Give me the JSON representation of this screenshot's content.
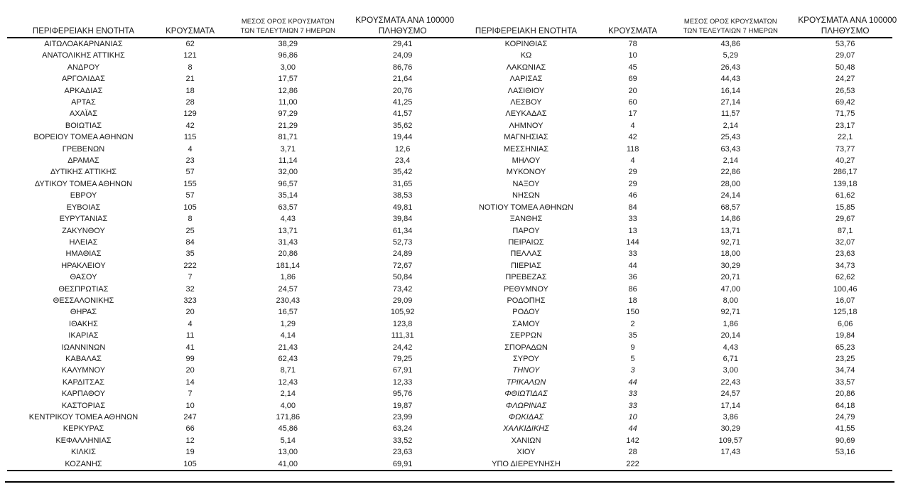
{
  "page": {
    "background_color": "#ffffff",
    "text_color": "#171717",
    "rule_color": "#000000"
  },
  "headers": {
    "region": "ΠΕΡΙΦΕΡΕΙΑΚΗ ΕΝΟΤΗΤΑ",
    "cases": "ΚΡΟΥΣΜΑΤΑ",
    "avg7_line1": "ΜΕΣΟΣ ΟΡΟΣ ΚΡΟΥΣΜΑΤΩΝ",
    "avg7_line2": "ΤΩΝ ΤΕΛΕΥΤΑΙΩΝ 7 ΗΜΕΡΩΝ",
    "per100k_line1": "ΚΡΟΥΣΜΑΤΑ ΑΝΑ 100000",
    "per100k_line2": "ΠΛΗΘΥΣΜΟ"
  },
  "tables": [
    {
      "id": "left",
      "rows": [
        {
          "region": "ΑΙΤΩΛΟΑΚΑΡΝΑΝΙΑΣ",
          "cases": "62",
          "avg7": "38,29",
          "per100k": "29,41",
          "italic": false
        },
        {
          "region": "ΑΝΑΤΟΛΙΚΗΣ ΑΤΤΙΚΗΣ",
          "cases": "121",
          "avg7": "96,86",
          "per100k": "24,09",
          "italic": false
        },
        {
          "region": "ΑΝΔΡΟΥ",
          "cases": "8",
          "avg7": "3,00",
          "per100k": "86,76",
          "italic": false
        },
        {
          "region": "ΑΡΓΟΛΙΔΑΣ",
          "cases": "21",
          "avg7": "17,57",
          "per100k": "21,64",
          "italic": false
        },
        {
          "region": "ΑΡΚΑΔΙΑΣ",
          "cases": "18",
          "avg7": "12,86",
          "per100k": "20,76",
          "italic": false
        },
        {
          "region": "ΑΡΤΑΣ",
          "cases": "28",
          "avg7": "11,00",
          "per100k": "41,25",
          "italic": false
        },
        {
          "region": "ΑΧΑΪΑΣ",
          "cases": "129",
          "avg7": "97,29",
          "per100k": "41,57",
          "italic": false
        },
        {
          "region": "ΒΟΙΩΤΙΑΣ",
          "cases": "42",
          "avg7": "21,29",
          "per100k": "35,62",
          "italic": false
        },
        {
          "region": "ΒΟΡΕΙΟΥ ΤΟΜΕΑ ΑΘΗΝΩΝ",
          "cases": "115",
          "avg7": "81,71",
          "per100k": "19,44",
          "italic": false
        },
        {
          "region": "ΓΡΕΒΕΝΩΝ",
          "cases": "4",
          "avg7": "3,71",
          "per100k": "12,6",
          "italic": false
        },
        {
          "region": "ΔΡΑΜΑΣ",
          "cases": "23",
          "avg7": "11,14",
          "per100k": "23,4",
          "italic": false
        },
        {
          "region": "ΔΥΤΙΚΗΣ ΑΤΤΙΚΗΣ",
          "cases": "57",
          "avg7": "32,00",
          "per100k": "35,42",
          "italic": false
        },
        {
          "region": "ΔΥΤΙΚΟΥ ΤΟΜΕΑ ΑΘΗΝΩΝ",
          "cases": "155",
          "avg7": "96,57",
          "per100k": "31,65",
          "italic": false
        },
        {
          "region": "ΕΒΡΟΥ",
          "cases": "57",
          "avg7": "35,14",
          "per100k": "38,53",
          "italic": false
        },
        {
          "region": "ΕΥΒΟΙΑΣ",
          "cases": "105",
          "avg7": "63,57",
          "per100k": "49,81",
          "italic": false
        },
        {
          "region": "ΕΥΡΥΤΑΝΙΑΣ",
          "cases": "8",
          "avg7": "4,43",
          "per100k": "39,84",
          "italic": false
        },
        {
          "region": "ΖΑΚΥΝΘΟΥ",
          "cases": "25",
          "avg7": "13,71",
          "per100k": "61,34",
          "italic": false
        },
        {
          "region": "ΗΛΕΙΑΣ",
          "cases": "84",
          "avg7": "31,43",
          "per100k": "52,73",
          "italic": false
        },
        {
          "region": "ΗΜΑΘΙΑΣ",
          "cases": "35",
          "avg7": "20,86",
          "per100k": "24,89",
          "italic": false
        },
        {
          "region": "ΗΡΑΚΛΕΙΟΥ",
          "cases": "222",
          "avg7": "181,14",
          "per100k": "72,67",
          "italic": false
        },
        {
          "region": "ΘΑΣΟΥ",
          "cases": "7",
          "avg7": "1,86",
          "per100k": "50,84",
          "italic": false
        },
        {
          "region": "ΘΕΣΠΡΩΤΙΑΣ",
          "cases": "32",
          "avg7": "24,57",
          "per100k": "73,42",
          "italic": false
        },
        {
          "region": "ΘΕΣΣΑΛΟΝΙΚΗΣ",
          "cases": "323",
          "avg7": "230,43",
          "per100k": "29,09",
          "italic": false
        },
        {
          "region": "ΘΗΡΑΣ",
          "cases": "20",
          "avg7": "16,57",
          "per100k": "105,92",
          "italic": false
        },
        {
          "region": "ΙΘΑΚΗΣ",
          "cases": "4",
          "avg7": "1,29",
          "per100k": "123,8",
          "italic": false
        },
        {
          "region": "ΙΚΑΡΙΑΣ",
          "cases": "11",
          "avg7": "4,14",
          "per100k": "111,31",
          "italic": false
        },
        {
          "region": "ΙΩΑΝΝΙΝΩΝ",
          "cases": "41",
          "avg7": "21,43",
          "per100k": "24,42",
          "italic": false
        },
        {
          "region": "ΚΑΒΑΛΑΣ",
          "cases": "99",
          "avg7": "62,43",
          "per100k": "79,25",
          "italic": false
        },
        {
          "region": "ΚΑΛΥΜΝΟΥ",
          "cases": "20",
          "avg7": "8,71",
          "per100k": "67,91",
          "italic": false
        },
        {
          "region": "ΚΑΡΔΙΤΣΑΣ",
          "cases": "14",
          "avg7": "12,43",
          "per100k": "12,33",
          "italic": false
        },
        {
          "region": "ΚΑΡΠΑΘΟΥ",
          "cases": "7",
          "avg7": "2,14",
          "per100k": "95,76",
          "italic": false
        },
        {
          "region": "ΚΑΣΤΟΡΙΑΣ",
          "cases": "10",
          "avg7": "4,00",
          "per100k": "19,87",
          "italic": false
        },
        {
          "region": "ΚΕΝΤΡΙΚΟΥ ΤΟΜΕΑ ΑΘΗΝΩΝ",
          "cases": "247",
          "avg7": "171,86",
          "per100k": "23,99",
          "italic": false
        },
        {
          "region": "ΚΕΡΚΥΡΑΣ",
          "cases": "66",
          "avg7": "45,86",
          "per100k": "63,24",
          "italic": false
        },
        {
          "region": "ΚΕΦΑΛΛΗΝΙΑΣ",
          "cases": "12",
          "avg7": "5,14",
          "per100k": "33,52",
          "italic": false
        },
        {
          "region": "ΚΙΛΚΙΣ",
          "cases": "19",
          "avg7": "13,00",
          "per100k": "23,63",
          "italic": false
        },
        {
          "region": "ΚΟΖΑΝΗΣ",
          "cases": "105",
          "avg7": "41,00",
          "per100k": "69,91",
          "italic": false
        }
      ]
    },
    {
      "id": "right",
      "rows": [
        {
          "region": "ΚΟΡΙΝΘΙΑΣ",
          "cases": "78",
          "avg7": "43,86",
          "per100k": "53,76",
          "italic": false
        },
        {
          "region": "ΚΩ",
          "cases": "10",
          "avg7": "5,29",
          "per100k": "29,07",
          "italic": false
        },
        {
          "region": "ΛΑΚΩΝΙΑΣ",
          "cases": "45",
          "avg7": "26,43",
          "per100k": "50,48",
          "italic": false
        },
        {
          "region": "ΛΑΡΙΣΑΣ",
          "cases": "69",
          "avg7": "44,43",
          "per100k": "24,27",
          "italic": false
        },
        {
          "region": "ΛΑΣΙΘΙΟΥ",
          "cases": "20",
          "avg7": "16,14",
          "per100k": "26,53",
          "italic": false
        },
        {
          "region": "ΛΕΣΒΟΥ",
          "cases": "60",
          "avg7": "27,14",
          "per100k": "69,42",
          "italic": false
        },
        {
          "region": "ΛΕΥΚΑΔΑΣ",
          "cases": "17",
          "avg7": "11,57",
          "per100k": "71,75",
          "italic": false
        },
        {
          "region": "ΛΗΜΝΟΥ",
          "cases": "4",
          "avg7": "2,14",
          "per100k": "23,17",
          "italic": false
        },
        {
          "region": "ΜΑΓΝΗΣΙΑΣ",
          "cases": "42",
          "avg7": "25,43",
          "per100k": "22,1",
          "italic": false
        },
        {
          "region": "ΜΕΣΣΗΝΙΑΣ",
          "cases": "118",
          "avg7": "63,43",
          "per100k": "73,77",
          "italic": false
        },
        {
          "region": "ΜΗΛΟΥ",
          "cases": "4",
          "avg7": "2,14",
          "per100k": "40,27",
          "italic": false
        },
        {
          "region": "ΜΥΚΟΝΟΥ",
          "cases": "29",
          "avg7": "22,86",
          "per100k": "286,17",
          "italic": false
        },
        {
          "region": "ΝΑΞΟΥ",
          "cases": "29",
          "avg7": "28,00",
          "per100k": "139,18",
          "italic": false
        },
        {
          "region": "ΝΗΣΩΝ",
          "cases": "46",
          "avg7": "24,14",
          "per100k": "61,62",
          "italic": false
        },
        {
          "region": "ΝΟΤΙΟΥ ΤΟΜΕΑ ΑΘΗΝΩΝ",
          "cases": "84",
          "avg7": "68,57",
          "per100k": "15,85",
          "italic": false
        },
        {
          "region": "ΞΑΝΘΗΣ",
          "cases": "33",
          "avg7": "14,86",
          "per100k": "29,67",
          "italic": false
        },
        {
          "region": "ΠΑΡΟΥ",
          "cases": "13",
          "avg7": "13,71",
          "per100k": "87,1",
          "italic": false
        },
        {
          "region": "ΠΕΙΡΑΙΩΣ",
          "cases": "144",
          "avg7": "92,71",
          "per100k": "32,07",
          "italic": false
        },
        {
          "region": "ΠΕΛΛΑΣ",
          "cases": "33",
          "avg7": "18,00",
          "per100k": "23,63",
          "italic": false
        },
        {
          "region": "ΠΙΕΡΙΑΣ",
          "cases": "44",
          "avg7": "30,29",
          "per100k": "34,73",
          "italic": false
        },
        {
          "region": "ΠΡΕΒΕΖΑΣ",
          "cases": "36",
          "avg7": "20,71",
          "per100k": "62,62",
          "italic": false
        },
        {
          "region": "ΡΕΘΥΜΝΟΥ",
          "cases": "86",
          "avg7": "47,00",
          "per100k": "100,46",
          "italic": false
        },
        {
          "region": "ΡΟΔΟΠΗΣ",
          "cases": "18",
          "avg7": "8,00",
          "per100k": "16,07",
          "italic": false
        },
        {
          "region": "ΡΟΔΟΥ",
          "cases": "150",
          "avg7": "92,71",
          "per100k": "125,18",
          "italic": false
        },
        {
          "region": "ΣΑΜΟΥ",
          "cases": "2",
          "avg7": "1,86",
          "per100k": "6,06",
          "italic": false
        },
        {
          "region": "ΣΕΡΡΩΝ",
          "cases": "35",
          "avg7": "20,14",
          "per100k": "19,84",
          "italic": false
        },
        {
          "region": "ΣΠΟΡΑΔΩΝ",
          "cases": "9",
          "avg7": "4,43",
          "per100k": "65,23",
          "italic": false
        },
        {
          "region": "ΣΥΡΟΥ",
          "cases": "5",
          "avg7": "6,71",
          "per100k": "23,25",
          "italic": false
        },
        {
          "region": "ΤΗΝΟΥ",
          "cases": "3",
          "avg7": "3,00",
          "per100k": "34,74",
          "italic": true
        },
        {
          "region": "ΤΡΙΚΑΛΩΝ",
          "cases": "44",
          "avg7": "22,43",
          "per100k": "33,57",
          "italic": true
        },
        {
          "region": "ΦΘΙΩΤΙΔΑΣ",
          "cases": "33",
          "avg7": "24,57",
          "per100k": "20,86",
          "italic": true
        },
        {
          "region": "ΦΛΩΡΙΝΑΣ",
          "cases": "33",
          "avg7": "17,14",
          "per100k": "64,18",
          "italic": true
        },
        {
          "region": "ΦΩΚΙΔΑΣ",
          "cases": "10",
          "avg7": "3,86",
          "per100k": "24,79",
          "italic": true
        },
        {
          "region": "ΧΑΛΚΙΔΙΚΗΣ",
          "cases": "44",
          "avg7": "30,29",
          "per100k": "41,55",
          "italic": true
        },
        {
          "region": "ΧΑΝΙΩΝ",
          "cases": "142",
          "avg7": "109,57",
          "per100k": "90,69",
          "italic": false
        },
        {
          "region": "ΧΙΟΥ",
          "cases": "28",
          "avg7": "17,43",
          "per100k": "53,16",
          "italic": false
        },
        {
          "region": "ΥΠΟ ΔΙΕΡΕΥΝΗΣΗ",
          "cases": "222",
          "avg7": "",
          "per100k": "",
          "italic": false
        }
      ]
    }
  ]
}
